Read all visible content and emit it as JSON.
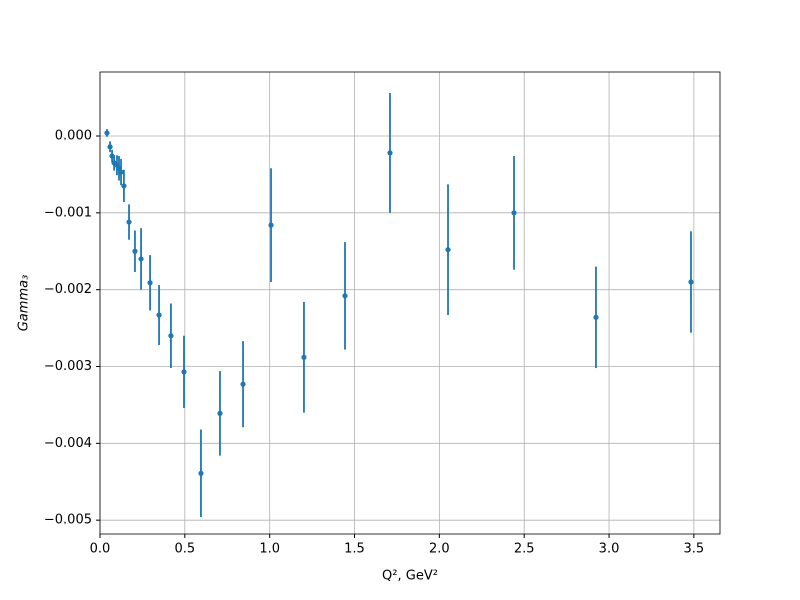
{
  "chart_data": {
    "type": "errorbar",
    "xlabel": "Q², GeV²",
    "ylabel": "Gamma₃",
    "color": "#1f77b4",
    "grid": true,
    "xlim": [
      0,
      3.654
    ],
    "ylim": [
      -0.00518,
      0.000833
    ],
    "xticks": [
      {
        "value": 0,
        "label": "0.0"
      },
      {
        "value": 0.5,
        "label": "0.5"
      },
      {
        "value": 1,
        "label": "1.0"
      },
      {
        "value": 1.5,
        "label": "1.5"
      },
      {
        "value": 2,
        "label": "2.0"
      },
      {
        "value": 2.5,
        "label": "2.5"
      },
      {
        "value": 3,
        "label": "3.0"
      },
      {
        "value": 3.5,
        "label": "3.5"
      }
    ],
    "yticks": [
      {
        "value": 0,
        "label": "0.000"
      },
      {
        "value": -0.001,
        "label": "−0.001"
      },
      {
        "value": -0.002,
        "label": "−0.002"
      },
      {
        "value": -0.003,
        "label": "−0.003"
      },
      {
        "value": -0.004,
        "label": "−0.004"
      },
      {
        "value": -0.005,
        "label": "−0.005"
      }
    ],
    "x": [
      0.041,
      0.059,
      0.071,
      0.083,
      0.1,
      0.112,
      0.124,
      0.141,
      0.171,
      0.206,
      0.242,
      0.295,
      0.348,
      0.418,
      0.495,
      0.595,
      0.707,
      0.843,
      1.008,
      1.202,
      1.444,
      1.709,
      2.051,
      2.44,
      2.923,
      3.483
    ],
    "values": [
      4e-05,
      -0.00014,
      -0.00026,
      -0.00035,
      -0.00038,
      -0.00042,
      -0.00047,
      -0.00065,
      -0.00112,
      -0.0015,
      -0.0016,
      -0.00191,
      -0.00233,
      -0.0026,
      -0.00307,
      -0.00439,
      -0.00361,
      -0.00323,
      -0.00116,
      -0.00288,
      -0.00208,
      -0.00022,
      -0.00148,
      -0.001,
      -0.00236,
      -0.0019
    ],
    "errors": [
      5e-05,
      7e-05,
      8e-05,
      0.0001,
      0.00013,
      0.00016,
      0.00017,
      0.00021,
      0.00023,
      0.00027,
      0.0004,
      0.00036,
      0.00039,
      0.00042,
      0.00047,
      0.00057,
      0.00055,
      0.00056,
      0.00074,
      0.00072,
      0.0007,
      0.00078,
      0.00085,
      0.00074,
      0.00066,
      0.00066
    ]
  }
}
